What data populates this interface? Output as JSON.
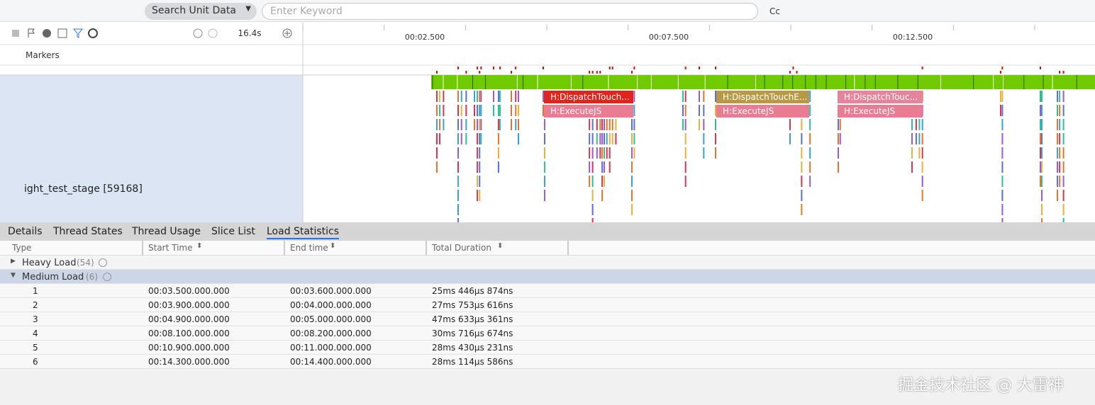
{
  "toolbar": {
    "search_dropdown": "Search Unit Data",
    "search_placeholder": "Enter Keyword",
    "case_button": "Cc"
  },
  "timeline": {
    "zoom": "16.4s",
    "time_labels": [
      "00:02.500",
      "00:07.500",
      "00:12.500"
    ],
    "markers_label": "Markers",
    "process_label": "ight_test_stage [59168]",
    "slices": [
      {
        "top": "H:DispatchTouch...",
        "bottom": "H:ExecuteJS"
      },
      {
        "top": "H:DispatchTouchE...",
        "bottom": "H:ExecuteJS"
      },
      {
        "top": "H:DispatchTouc...",
        "bottom": "H:ExecuteJS"
      }
    ]
  },
  "tabs": [
    "Details",
    "Thread States",
    "Thread Usage",
    "Slice List",
    "Load Statistics"
  ],
  "table": {
    "headers": [
      "Type",
      "Start Time",
      "End time",
      "Total Duration"
    ],
    "groups": [
      {
        "name": "Heavy Load",
        "count": "(54)"
      },
      {
        "name": "Medium Load",
        "count": "(6)"
      }
    ],
    "rows": [
      [
        "1",
        "00:03.500.000.000",
        "00:03.600.000.000",
        "25ms 446μs 874ns"
      ],
      [
        "2",
        "00:03.900.000.000",
        "00:04.000.000.000",
        "27ms 753μs 616ns"
      ],
      [
        "3",
        "00:04.900.000.000",
        "00:05.000.000.000",
        "47ms 633μs 361ns"
      ],
      [
        "4",
        "00:08.100.000.000",
        "00:08.200.000.000",
        "30ms 716μs 674ns"
      ],
      [
        "5",
        "00:10.900.000.000",
        "00:11.000.000.000",
        "28ms 430μs 231ns"
      ],
      [
        "6",
        "00:14.300.000.000",
        "00:14.400.000.000",
        "28ms 114μs 586ns"
      ]
    ]
  },
  "watermark": "掘金技术社区 @ 大雷神"
}
